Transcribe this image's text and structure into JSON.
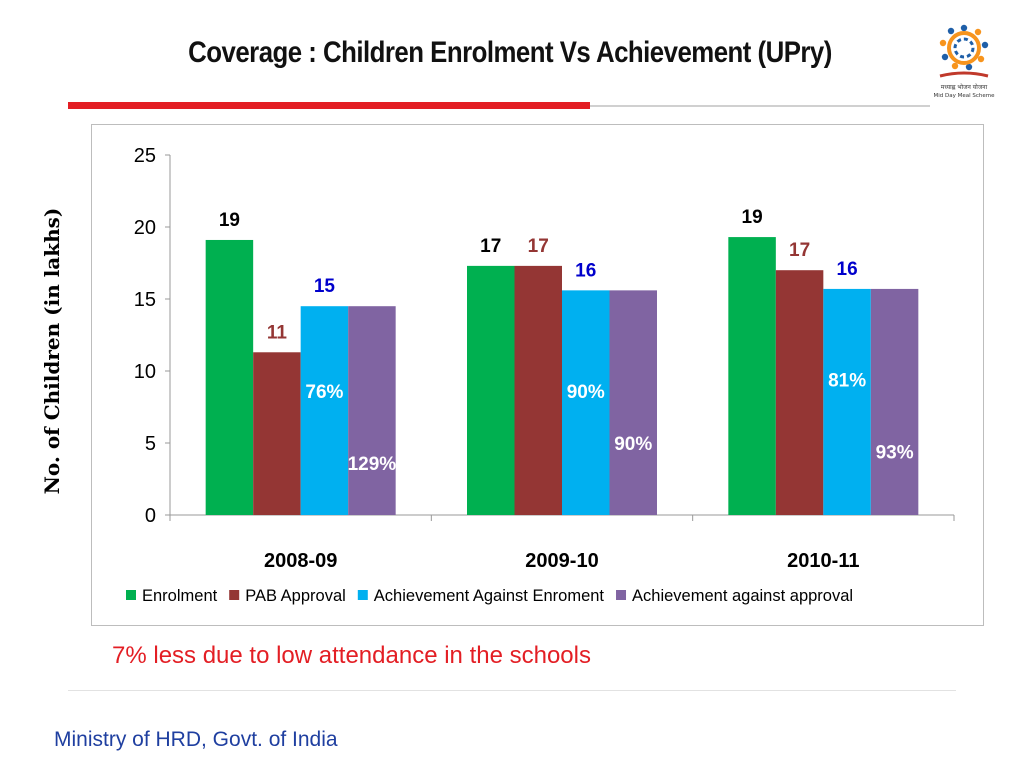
{
  "slide": {
    "title": "Coverage : Children Enrolment Vs Achievement (UPry)",
    "note": "7% less due to low attendance in the schools",
    "footer": "Ministry of HRD, Govt. of India",
    "logo_caption": "मध्याह्न भोजन योजना",
    "logo_subcaption": "Mid Day Meal Scheme"
  },
  "colors": {
    "accent_red": "#e31e24",
    "footer_blue": "#1f3fa0"
  },
  "chart_data": {
    "type": "bar",
    "title": "",
    "ylabel": "No. of Children (in lakhs)",
    "xlabel": "",
    "ylim": [
      0,
      25
    ],
    "yticks": [
      0,
      5,
      10,
      15,
      20,
      25
    ],
    "grid": false,
    "legend_position": "bottom",
    "categories": [
      "2008-09",
      "2009-10",
      "2010-11"
    ],
    "series": [
      {
        "name": "Enrolment",
        "color": "#00b050",
        "values": [
          19.1,
          17.3,
          19.3
        ],
        "labels": [
          "19",
          "17",
          "19"
        ],
        "label_color": "#000000"
      },
      {
        "name": "PAB Approval",
        "color": "#943634",
        "values": [
          11.3,
          17.3,
          17.0
        ],
        "labels": [
          "11",
          "17",
          "17"
        ],
        "label_color": "#943634"
      },
      {
        "name": "Achievement Against Enroment",
        "color": "#00b0f0",
        "values": [
          14.5,
          15.6,
          15.7
        ],
        "labels": [
          "15",
          "16",
          "16"
        ],
        "label_color": "#0000cc"
      },
      {
        "name": "Achievement against approval",
        "color": "#8064a2",
        "values": [
          14.5,
          15.6,
          15.7
        ],
        "labels": [
          "",
          "",
          ""
        ],
        "label_color": "#000000"
      }
    ],
    "annotations": [
      {
        "text": "76%",
        "category": 0,
        "series": 2,
        "y": 8.6
      },
      {
        "text": "129%",
        "category": 0,
        "series": 3,
        "y": 3.6
      },
      {
        "text": "90%",
        "category": 1,
        "series": 2,
        "y": 8.6
      },
      {
        "text": "90%",
        "category": 1,
        "series": 3,
        "y": 5.0
      },
      {
        "text": "81%",
        "category": 2,
        "series": 2,
        "y": 9.4
      },
      {
        "text": "93%",
        "category": 2,
        "series": 3,
        "y": 4.4
      }
    ]
  }
}
